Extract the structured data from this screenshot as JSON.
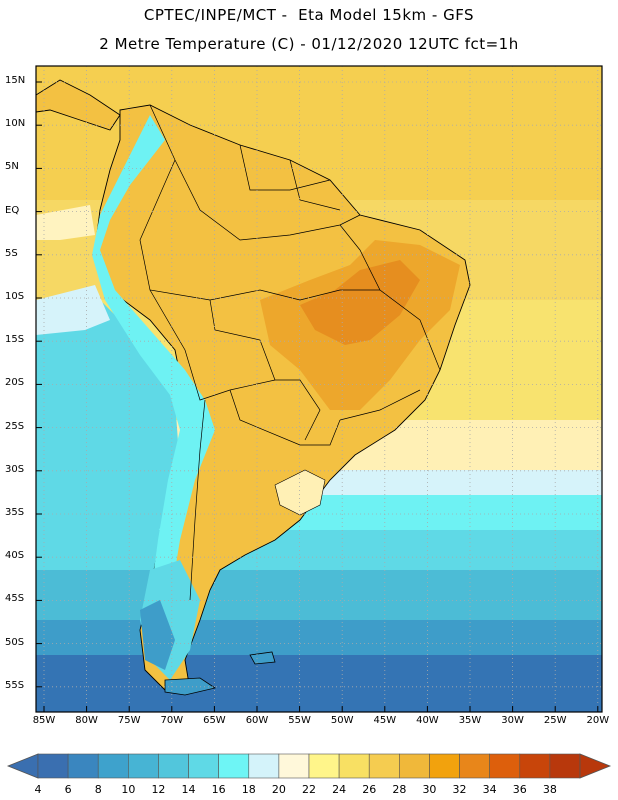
{
  "header": {
    "line1": "CPTEC/INPE/MCT -  Eta Model 15km - GFS",
    "line2": "2 Metre Temperature (C) - 01/12/2020 12UTC fct=1h"
  },
  "map": {
    "lat_labels": [
      "15N",
      "10N",
      "5N",
      "EQ",
      "5S",
      "10S",
      "15S",
      "20S",
      "25S",
      "30S",
      "35S",
      "40S",
      "45S",
      "50S",
      "55S"
    ],
    "lon_labels": [
      "85W",
      "80W",
      "75W",
      "70W",
      "65W",
      "60W",
      "55W",
      "50W",
      "45W",
      "40W",
      "35W",
      "30W",
      "25W",
      "20W"
    ],
    "colors": {
      "ocean_warm": "#f4cf55",
      "ocean_subtropical": "#fff3c0",
      "land": "#f3c142",
      "land_hot": "#eda72c",
      "andes_cool": "#58d9eb",
      "ocean_cold": "#3fb7cf",
      "ocean_deep": "#2f7fb8"
    }
  },
  "colorbar": {
    "labels": [
      "4",
      "6",
      "8",
      "10",
      "12",
      "14",
      "16",
      "18",
      "20",
      "22",
      "24",
      "26",
      "28",
      "30",
      "32",
      "34",
      "36",
      "38"
    ],
    "colors": [
      "#3a6fb0",
      "#3a86bf",
      "#3ea2cc",
      "#47b4d4",
      "#52c6dc",
      "#5fd9e6",
      "#6ef5f5",
      "#d4f3fa",
      "#fff8da",
      "#fff58a",
      "#f8e063",
      "#f5cc50",
      "#f0b83a",
      "#f2a20d",
      "#e8861a",
      "#dd5f0c",
      "#c8450a",
      "#b8380c"
    ]
  }
}
